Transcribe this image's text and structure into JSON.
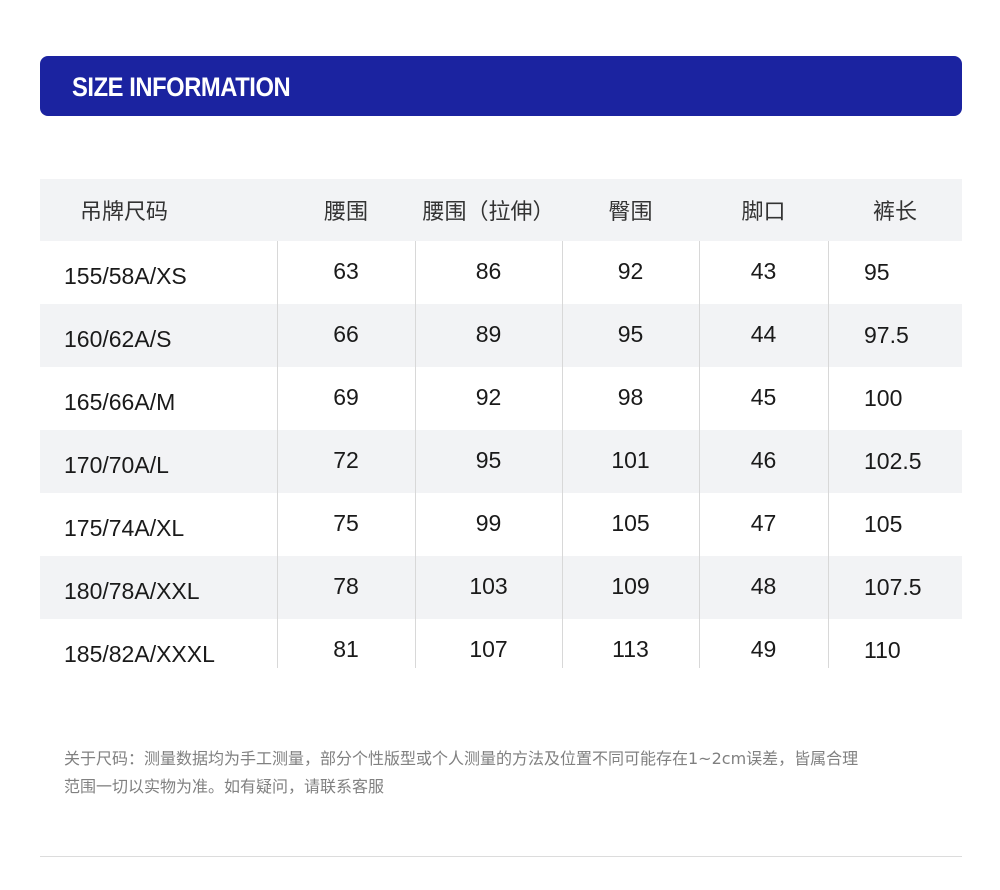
{
  "banner": {
    "title": "SIZE INFORMATION",
    "color": "#1b23a0"
  },
  "table": {
    "headers": [
      "吊牌尺码",
      "腰围",
      "腰围（拉伸）",
      "臀围",
      "脚口",
      "裤长"
    ],
    "rows": [
      [
        "155/58A/XS",
        "63",
        "86",
        "92",
        "43",
        "95"
      ],
      [
        "160/62A/S",
        "66",
        "89",
        "95",
        "44",
        "97.5"
      ],
      [
        "165/66A/M",
        "69",
        "92",
        "98",
        "45",
        "100"
      ],
      [
        "170/70A/L",
        "72",
        "95",
        "101",
        "46",
        "102.5"
      ],
      [
        "175/74A/XL",
        "75",
        "99",
        "105",
        "47",
        "105"
      ],
      [
        "180/78A/XXL",
        "78",
        "103",
        "109",
        "48",
        "107.5"
      ],
      [
        "185/82A/XXXL",
        "81",
        "107",
        "113",
        "49",
        "110"
      ]
    ]
  },
  "note": {
    "line1": "关于尺码：测量数据均为手工测量，部分个性版型或个人测量的方法及位置不同可能存在1~2cm误差，皆属合理",
    "line2": "范围一切以实物为准。如有疑问，请联系客服"
  }
}
